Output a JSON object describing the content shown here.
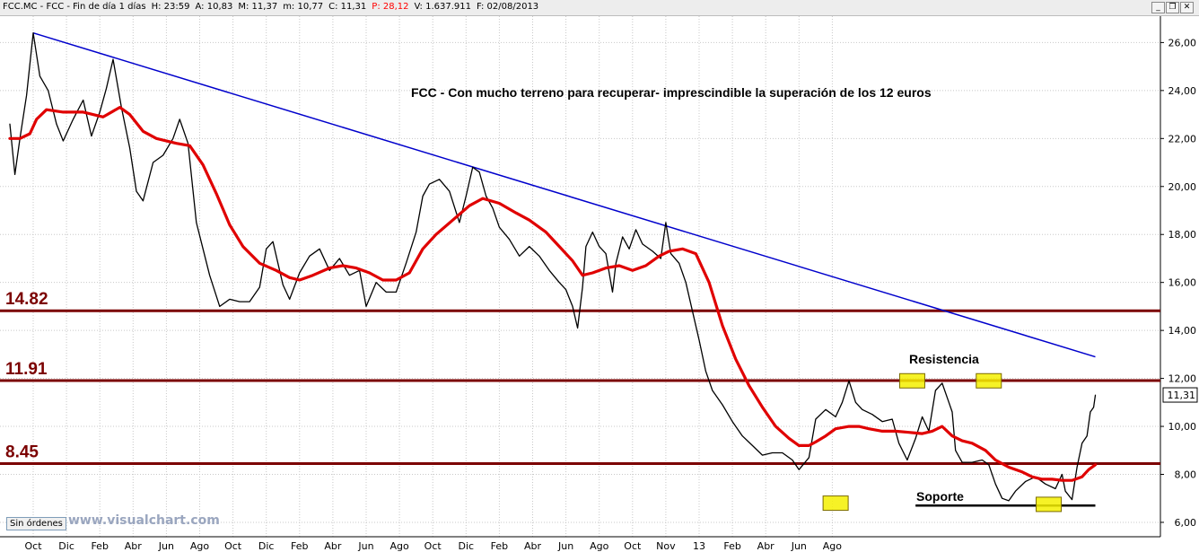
{
  "window": {
    "symbol": "FCC.MC - FCC - Fin de día 1 días",
    "fields": [
      {
        "label": "H:",
        "value": "23:59",
        "color": "#000000"
      },
      {
        "label": "A:",
        "value": "10,83",
        "color": "#000000"
      },
      {
        "label": "M:",
        "value": "11,37",
        "color": "#000000"
      },
      {
        "label": "m:",
        "value": "10,77",
        "color": "#000000"
      },
      {
        "label": "C:",
        "value": "11,31",
        "color": "#000000"
      },
      {
        "label": "P:",
        "value": "28,12",
        "color": "#ff0000"
      },
      {
        "label": "V:",
        "value": "1.637.911",
        "color": "#000000"
      },
      {
        "label": "F:",
        "value": "02/08/2013",
        "color": "#000000"
      }
    ],
    "minimize_glyph": "_",
    "restore_glyph": "❐",
    "close_glyph": "✕"
  },
  "footer": {
    "orders_button": "Sin órdenes",
    "watermark": "www.visualchart.com"
  },
  "chart_data": {
    "type": "line",
    "annotation": "FCC - Con mucho terreno para recuperar- imprescindible la superación de los 12 euros",
    "x_ticks": [
      "Oct",
      "Dic",
      "Feb",
      "Abr",
      "Jun",
      "Ago",
      "Oct",
      "Dic",
      "Feb",
      "Abr",
      "Jun",
      "Ago",
      "Oct",
      "Dic",
      "Feb",
      "Abr",
      "Jun",
      "Ago",
      "Oct",
      "Nov",
      "13",
      "Feb",
      "Abr",
      "Jun",
      "Ago"
    ],
    "y_ticks": [
      "26,00",
      "24,00",
      "22,00",
      "20,00",
      "18,00",
      "16,00",
      "14,00",
      "12,00",
      "10,00",
      "8,00",
      "6,00"
    ],
    "ylim": [
      5.4,
      27.1
    ],
    "last_price_label": "11,31",
    "last_price": 11.31,
    "horizontal_levels": [
      {
        "label": "14.82",
        "value": 14.82,
        "color": "#7b0000"
      },
      {
        "label": "11.91",
        "value": 11.91,
        "color": "#7b0000"
      },
      {
        "label": "8.45",
        "value": 8.45,
        "color": "#7b0000"
      }
    ],
    "text_labels": {
      "resistance": "Resistencia",
      "support": "Soporte"
    },
    "trendline": {
      "color": "#0000cc",
      "points": [
        [
          0.0,
          26.4
        ],
        [
          31.9,
          12.9
        ]
      ]
    },
    "support_line": {
      "color": "#000000",
      "value": 6.7,
      "from": 26.5,
      "to": 31.9
    },
    "marked_zones": [
      {
        "role": "support",
        "x": 24.1,
        "y": 6.8
      },
      {
        "role": "resistance",
        "x": 26.4,
        "y": 11.9
      },
      {
        "role": "resistance",
        "x": 28.7,
        "y": 11.9
      },
      {
        "role": "support",
        "x": 30.5,
        "y": 6.75
      }
    ],
    "series": [
      {
        "name": "",
        "color": "#000000",
        "points": [
          [
            -0.7,
            22.6
          ],
          [
            -0.55,
            20.5
          ],
          [
            -0.4,
            22.0
          ],
          [
            -0.2,
            23.8
          ],
          [
            0.0,
            26.4
          ],
          [
            0.2,
            24.6
          ],
          [
            0.45,
            24.0
          ],
          [
            0.7,
            22.6
          ],
          [
            0.9,
            21.9
          ],
          [
            1.2,
            22.8
          ],
          [
            1.5,
            23.6
          ],
          [
            1.75,
            22.1
          ],
          [
            2.0,
            23.1
          ],
          [
            2.2,
            24.1
          ],
          [
            2.4,
            25.3
          ],
          [
            2.65,
            23.3
          ],
          [
            2.9,
            21.6
          ],
          [
            3.1,
            19.8
          ],
          [
            3.3,
            19.4
          ],
          [
            3.6,
            21.0
          ],
          [
            3.9,
            21.3
          ],
          [
            4.2,
            22.0
          ],
          [
            4.4,
            22.8
          ],
          [
            4.65,
            21.8
          ],
          [
            4.9,
            18.5
          ],
          [
            5.1,
            17.4
          ],
          [
            5.3,
            16.3
          ],
          [
            5.6,
            15.0
          ],
          [
            5.9,
            15.3
          ],
          [
            6.2,
            15.2
          ],
          [
            6.5,
            15.2
          ],
          [
            6.8,
            15.8
          ],
          [
            7.0,
            17.4
          ],
          [
            7.2,
            17.7
          ],
          [
            7.5,
            15.9
          ],
          [
            7.7,
            15.3
          ],
          [
            8.0,
            16.4
          ],
          [
            8.3,
            17.1
          ],
          [
            8.6,
            17.4
          ],
          [
            8.9,
            16.5
          ],
          [
            9.2,
            17.0
          ],
          [
            9.5,
            16.3
          ],
          [
            9.8,
            16.5
          ],
          [
            10.0,
            15.0
          ],
          [
            10.3,
            16.0
          ],
          [
            10.6,
            15.6
          ],
          [
            10.9,
            15.6
          ],
          [
            11.2,
            16.8
          ],
          [
            11.5,
            18.1
          ],
          [
            11.7,
            19.6
          ],
          [
            11.9,
            20.1
          ],
          [
            12.2,
            20.3
          ],
          [
            12.5,
            19.8
          ],
          [
            12.8,
            18.5
          ],
          [
            13.0,
            19.6
          ],
          [
            13.2,
            20.8
          ],
          [
            13.4,
            20.6
          ],
          [
            13.6,
            19.6
          ],
          [
            13.8,
            19.1
          ],
          [
            14.0,
            18.3
          ],
          [
            14.3,
            17.8
          ],
          [
            14.6,
            17.1
          ],
          [
            14.9,
            17.5
          ],
          [
            15.2,
            17.1
          ],
          [
            15.5,
            16.5
          ],
          [
            15.8,
            16.0
          ],
          [
            16.0,
            15.7
          ],
          [
            16.2,
            15.0
          ],
          [
            16.35,
            14.1
          ],
          [
            16.5,
            15.8
          ],
          [
            16.6,
            17.5
          ],
          [
            16.8,
            18.1
          ],
          [
            17.0,
            17.5
          ],
          [
            17.2,
            17.2
          ],
          [
            17.4,
            15.6
          ],
          [
            17.5,
            16.8
          ],
          [
            17.7,
            17.9
          ],
          [
            17.9,
            17.4
          ],
          [
            18.1,
            18.2
          ],
          [
            18.3,
            17.6
          ],
          [
            18.6,
            17.3
          ],
          [
            18.85,
            17.0
          ],
          [
            19.0,
            18.5
          ],
          [
            19.15,
            17.2
          ],
          [
            19.4,
            16.8
          ],
          [
            19.6,
            16.0
          ],
          [
            19.8,
            14.8
          ],
          [
            20.0,
            13.6
          ],
          [
            20.2,
            12.3
          ],
          [
            20.4,
            11.5
          ],
          [
            20.7,
            10.9
          ],
          [
            21.0,
            10.2
          ],
          [
            21.3,
            9.6
          ],
          [
            21.6,
            9.2
          ],
          [
            21.9,
            8.8
          ],
          [
            22.2,
            8.9
          ],
          [
            22.5,
            8.9
          ],
          [
            22.8,
            8.6
          ],
          [
            23.0,
            8.2
          ],
          [
            23.3,
            8.7
          ],
          [
            23.5,
            10.3
          ],
          [
            23.8,
            10.7
          ],
          [
            24.1,
            10.4
          ],
          [
            24.3,
            11.0
          ],
          [
            24.5,
            11.9
          ],
          [
            24.7,
            11.0
          ],
          [
            24.9,
            10.7
          ],
          [
            25.2,
            10.5
          ],
          [
            25.5,
            10.2
          ],
          [
            25.8,
            10.3
          ],
          [
            26.0,
            9.3
          ],
          [
            26.25,
            8.6
          ],
          [
            26.5,
            9.5
          ],
          [
            26.7,
            10.4
          ],
          [
            26.9,
            9.8
          ],
          [
            27.1,
            11.5
          ],
          [
            27.3,
            11.8
          ],
          [
            27.5,
            11.0
          ],
          [
            27.6,
            10.6
          ],
          [
            27.7,
            9.0
          ],
          [
            27.9,
            8.5
          ],
          [
            28.2,
            8.5
          ],
          [
            28.5,
            8.6
          ],
          [
            28.7,
            8.4
          ],
          [
            28.9,
            7.6
          ],
          [
            29.1,
            7.0
          ],
          [
            29.3,
            6.9
          ],
          [
            29.5,
            7.3
          ],
          [
            29.8,
            7.7
          ],
          [
            30.1,
            7.9
          ],
          [
            30.4,
            7.6
          ],
          [
            30.7,
            7.4
          ],
          [
            30.9,
            8.0
          ],
          [
            31.0,
            7.3
          ],
          [
            31.2,
            6.95
          ],
          [
            31.35,
            8.3
          ],
          [
            31.5,
            9.3
          ],
          [
            31.65,
            9.6
          ],
          [
            31.75,
            10.6
          ],
          [
            31.85,
            10.8
          ],
          [
            31.9,
            11.3
          ]
        ]
      },
      {
        "name": "",
        "color": "#e00000",
        "points": [
          [
            -0.7,
            22.0
          ],
          [
            -0.4,
            22.0
          ],
          [
            -0.1,
            22.2
          ],
          [
            0.1,
            22.8
          ],
          [
            0.4,
            23.2
          ],
          [
            0.9,
            23.1
          ],
          [
            1.5,
            23.1
          ],
          [
            2.1,
            22.9
          ],
          [
            2.6,
            23.3
          ],
          [
            2.9,
            23.0
          ],
          [
            3.3,
            22.3
          ],
          [
            3.7,
            22.0
          ],
          [
            4.3,
            21.8
          ],
          [
            4.7,
            21.7
          ],
          [
            5.1,
            20.9
          ],
          [
            5.5,
            19.7
          ],
          [
            5.9,
            18.4
          ],
          [
            6.3,
            17.5
          ],
          [
            6.8,
            16.8
          ],
          [
            7.3,
            16.5
          ],
          [
            7.7,
            16.2
          ],
          [
            8.0,
            16.1
          ],
          [
            8.4,
            16.3
          ],
          [
            8.9,
            16.6
          ],
          [
            9.3,
            16.7
          ],
          [
            9.7,
            16.6
          ],
          [
            10.1,
            16.4
          ],
          [
            10.5,
            16.1
          ],
          [
            10.9,
            16.1
          ],
          [
            11.3,
            16.4
          ],
          [
            11.7,
            17.4
          ],
          [
            12.1,
            18.0
          ],
          [
            12.6,
            18.6
          ],
          [
            13.1,
            19.2
          ],
          [
            13.5,
            19.5
          ],
          [
            14.0,
            19.3
          ],
          [
            14.5,
            18.9
          ],
          [
            14.9,
            18.6
          ],
          [
            15.4,
            18.1
          ],
          [
            15.8,
            17.5
          ],
          [
            16.2,
            16.9
          ],
          [
            16.5,
            16.3
          ],
          [
            16.8,
            16.4
          ],
          [
            17.2,
            16.6
          ],
          [
            17.6,
            16.7
          ],
          [
            18.0,
            16.5
          ],
          [
            18.4,
            16.7
          ],
          [
            18.8,
            17.1
          ],
          [
            19.1,
            17.3
          ],
          [
            19.5,
            17.4
          ],
          [
            19.9,
            17.2
          ],
          [
            20.3,
            16.0
          ],
          [
            20.7,
            14.2
          ],
          [
            21.1,
            12.8
          ],
          [
            21.5,
            11.7
          ],
          [
            21.9,
            10.8
          ],
          [
            22.3,
            10.0
          ],
          [
            22.7,
            9.5
          ],
          [
            23.0,
            9.2
          ],
          [
            23.3,
            9.2
          ],
          [
            23.5,
            9.35
          ],
          [
            23.8,
            9.6
          ],
          [
            24.1,
            9.9
          ],
          [
            24.5,
            10.0
          ],
          [
            24.8,
            10.0
          ],
          [
            25.1,
            9.9
          ],
          [
            25.5,
            9.8
          ],
          [
            25.9,
            9.8
          ],
          [
            26.3,
            9.75
          ],
          [
            26.7,
            9.7
          ],
          [
            27.0,
            9.8
          ],
          [
            27.3,
            10.0
          ],
          [
            27.6,
            9.6
          ],
          [
            27.9,
            9.4
          ],
          [
            28.2,
            9.3
          ],
          [
            28.6,
            9.0
          ],
          [
            28.9,
            8.6
          ],
          [
            29.3,
            8.3
          ],
          [
            29.7,
            8.1
          ],
          [
            30.0,
            7.9
          ],
          [
            30.3,
            7.8
          ],
          [
            30.6,
            7.8
          ],
          [
            30.9,
            7.75
          ],
          [
            31.2,
            7.75
          ],
          [
            31.5,
            7.9
          ],
          [
            31.7,
            8.2
          ],
          [
            31.9,
            8.4
          ]
        ]
      }
    ]
  }
}
